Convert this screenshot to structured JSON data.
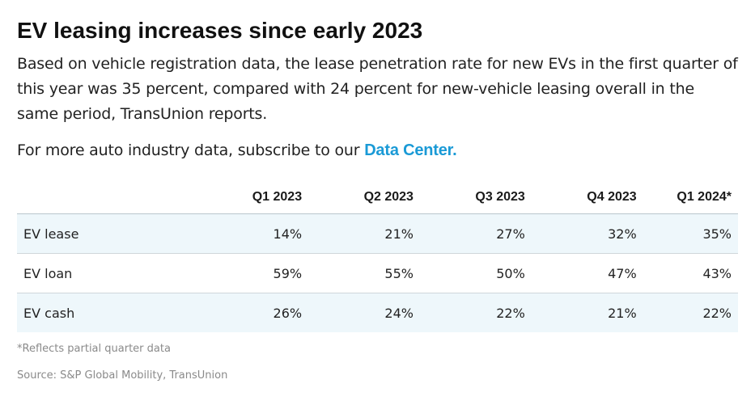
{
  "title": "EV leasing increases since early 2023",
  "subtitle": "Based on vehicle registration data, the lease penetration rate for new EVs in the first quarter of this year was 35 percent, compared with 24 percent for new-vehicle leasing overall in the same period, TransUnion reports.",
  "cta": {
    "text": "For more auto industry data, subscribe to our ",
    "link_text": "Data Center.",
    "link_color": "#1a9ad6"
  },
  "chart_data": {
    "type": "table",
    "columns": [
      "",
      "Q1 2023",
      "Q2 2023",
      "Q3 2023",
      "Q4 2023",
      "Q1 2024*"
    ],
    "rows": [
      {
        "label": "EV lease",
        "values": [
          "14%",
          "21%",
          "27%",
          "32%",
          "35%"
        ]
      },
      {
        "label": "EV loan",
        "values": [
          "59%",
          "55%",
          "50%",
          "47%",
          "43%"
        ]
      },
      {
        "label": "EV cash",
        "values": [
          "26%",
          "24%",
          "22%",
          "21%",
          "22%"
        ]
      }
    ],
    "shaded_row_color": "#eef7fb"
  },
  "footnote": "*Reflects partial quarter data",
  "source": "Source: S&P Global Mobility, TransUnion"
}
